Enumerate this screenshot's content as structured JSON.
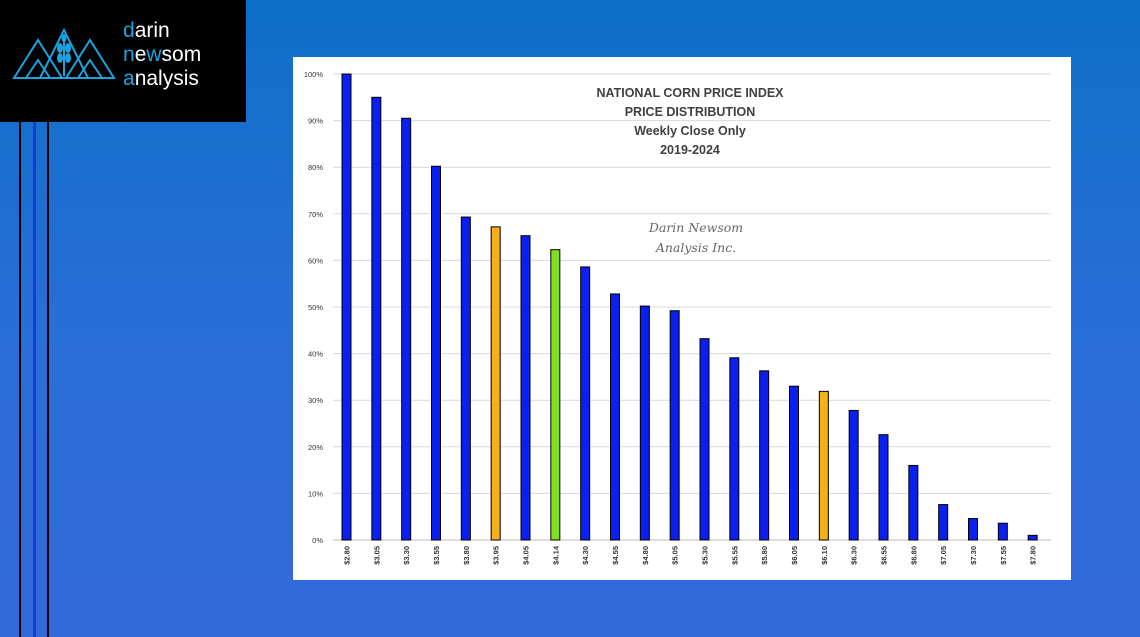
{
  "logo": {
    "line1_accent": "d",
    "line1_rest": "arin",
    "line2_accent": "n",
    "line2_mid": "e",
    "line2_accent2": "w",
    "line2_rest": "som",
    "line3_accent": "a",
    "line3_rest": "nalysis",
    "icon": "mountain-wheat-icon"
  },
  "colors": {
    "bar_default": "#0a1ff0",
    "bar_highlight_orange": "#f5b01a",
    "bar_highlight_green": "#7fe01b",
    "logo_accent": "#19a3e0"
  },
  "chart_data": {
    "type": "bar",
    "title_lines": [
      "NATIONAL CORN PRICE INDEX",
      "PRICE DISTRIBUTION",
      "Weekly Close Only",
      "2019-2024"
    ],
    "watermark_lines": [
      "Darin Newsom",
      "Analysis Inc."
    ],
    "categories": [
      "$2.80",
      "$3.05",
      "$3.30",
      "$3.55",
      "$3.80",
      "$3.95",
      "$4.05",
      "$4.14",
      "$4.30",
      "$4.55",
      "$4.80",
      "$5.05",
      "$5.30",
      "$5.55",
      "$5.80",
      "$6.05",
      "$6.10",
      "$6.30",
      "$6.55",
      "$6.80",
      "$7.05",
      "$7.30",
      "$7.55",
      "$7.80"
    ],
    "values": [
      100,
      95,
      90.5,
      80.2,
      69.3,
      67.2,
      65.3,
      62.3,
      58.6,
      52.8,
      50.2,
      49.2,
      43.2,
      39.1,
      36.3,
      33,
      31.9,
      27.8,
      22.6,
      16,
      7.6,
      4.6,
      3.6,
      1
    ],
    "bar_colors": [
      "blue",
      "blue",
      "blue",
      "blue",
      "blue",
      "orange",
      "blue",
      "green",
      "blue",
      "blue",
      "blue",
      "blue",
      "blue",
      "blue",
      "blue",
      "blue",
      "orange",
      "blue",
      "blue",
      "blue",
      "blue",
      "blue",
      "blue",
      "blue"
    ],
    "y_ticks": [
      "0%",
      "10%",
      "20%",
      "30%",
      "40%",
      "50%",
      "60%",
      "70%",
      "80%",
      "90%",
      "100%"
    ],
    "ylim": [
      0,
      100
    ],
    "grid": true,
    "legend": "none"
  }
}
